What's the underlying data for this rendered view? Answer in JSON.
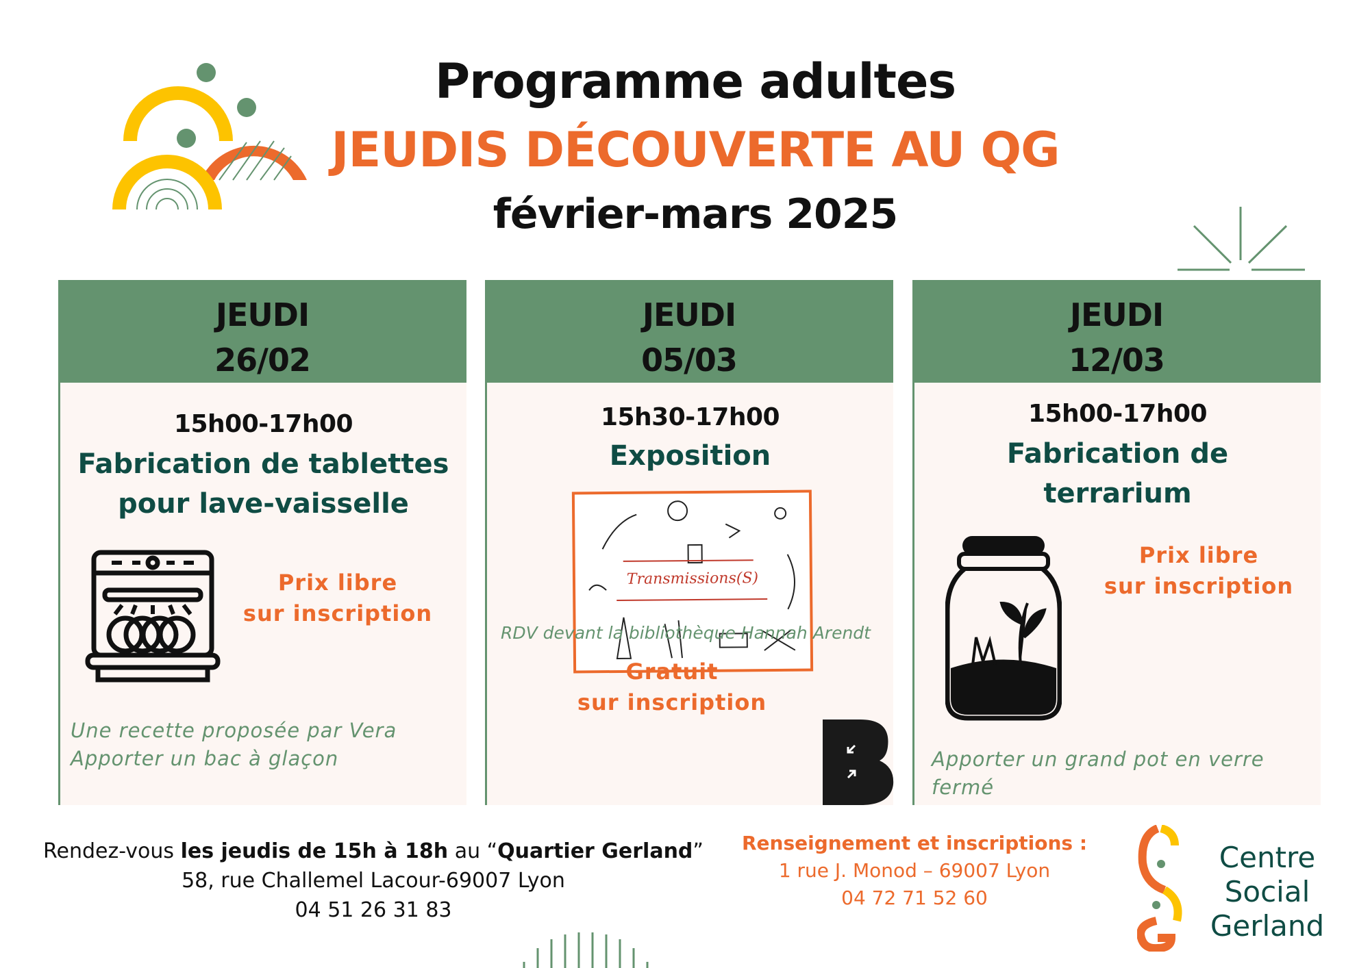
{
  "header": {
    "title": "Programme adultes",
    "subtitle": "JEUDIS DÉCOUVERTE AU QG",
    "period": "février-mars 2025"
  },
  "colors": {
    "green": "#64936f",
    "orange": "#ec6a2c",
    "yellow": "#fdc300",
    "dark_teal": "#0f4c44",
    "card_bg": "#fdf6f3"
  },
  "cards": [
    {
      "day": "JEUDI",
      "date": "26/02",
      "time": "15h00-17h00",
      "activity_line1": "Fabrication de tablettes",
      "activity_line2": "pour lave-vaisselle",
      "icon": "dishwasher-icon",
      "price_line1": "Prix libre",
      "price_line2": "sur inscription",
      "note_line1": "Une recette proposée par Vera",
      "note_line2": "Apporter un bac à glaçon"
    },
    {
      "day": "JEUDI",
      "date": "05/03",
      "time": "15h30-17h00",
      "activity_line1": "Exposition",
      "image_caption": "Transmissions(S)",
      "location": "RDV devant la bibliothèque Hannah Arendt",
      "price_line1": "Gratuit",
      "price_line2": "sur inscription",
      "icon": "library-b-logo"
    },
    {
      "day": "JEUDI",
      "date": "12/03",
      "time": "15h00-17h00",
      "activity_line1": "Fabrication de",
      "activity_line2": "terrarium",
      "icon": "terrarium-jar-icon",
      "price_line1": "Prix libre",
      "price_line2": "sur inscription",
      "note_line1": "Apporter un grand pot en verre fermé"
    }
  ],
  "footer": {
    "rdv_prefix": "Rendez-vous ",
    "rdv_bold": "les jeudis de 15h à 18h",
    "rdv_mid": " au “",
    "rdv_place": "Quartier Gerland",
    "rdv_end": "”",
    "address": "58, rue Challemel Lacour-69007 Lyon",
    "phone": "04 51 26 31 83",
    "info_title": "Renseignement et inscriptions  :",
    "info_address": "1 rue J. Monod – 69007 Lyon",
    "info_phone": "04 72 71 52 60",
    "logo_line1": "Centre",
    "logo_line2": "Social",
    "logo_line3": "Gerland"
  }
}
